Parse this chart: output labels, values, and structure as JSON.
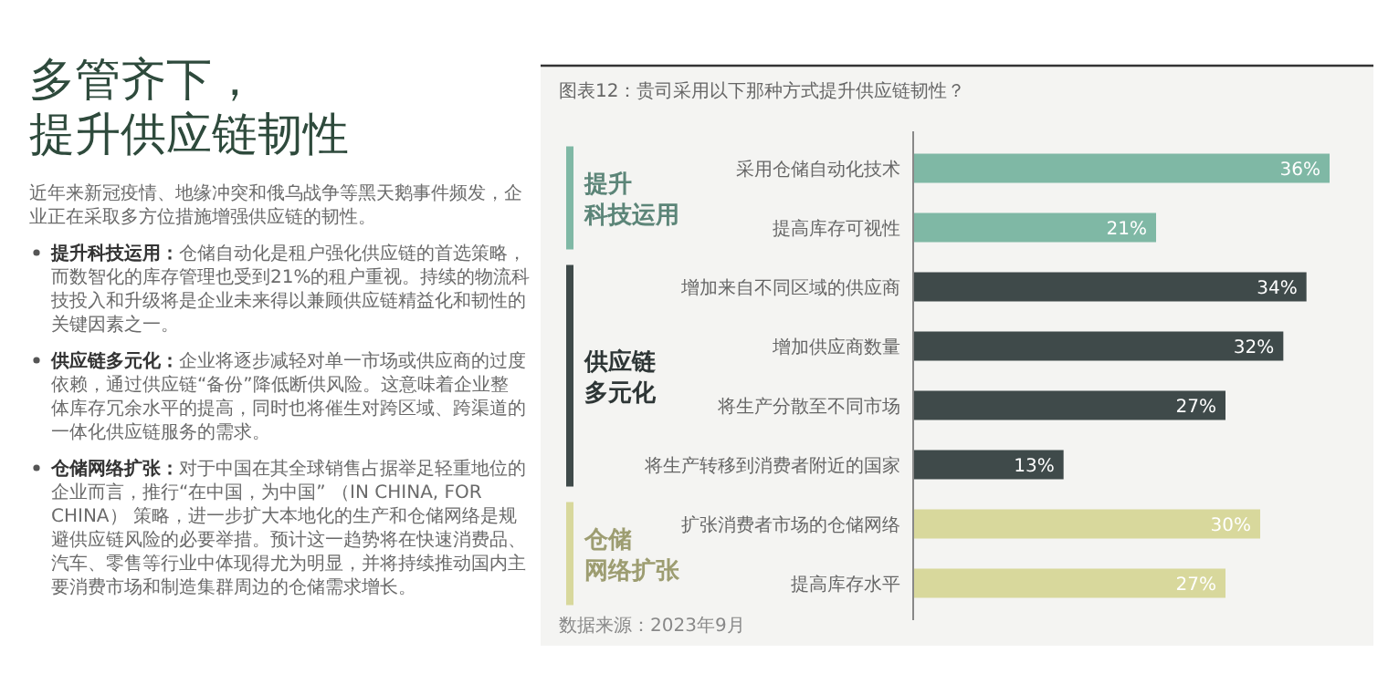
{
  "chart_data": [
    {
      "type": "other",
      "title": "多管齐下，提升供应链韧性",
      "annotations": [
        "近年来新冠疫情、地缘冲突和俄乌战争等黑天鹅事件频发，企业正在采取多方位措施增强供应链的韧性。",
        "提升科技运用：仓储自动化是租户强化供应链的首选策略，而数智化的库存管理也受到21%的租户重视。持续的物流科技投入和升级将是企业未来得以兼顾供应链精益化和韧性的关键因素之一。",
        "供应链多元化：企业将逐步减轻对单一市场或供应商的过度依赖，通过供应链“备份”降低断供风险。这意味着企业整体库存冗余水平的提高，同时也将催生对跨区域、跨渠道的一体化供应链服务的需求。",
        "仓储网络扩张：对于中国在其全球销售占据举足轻重地位的企业而言，推行“在中国，为中国” （IN CHINA, FOR CHINA） 策略，进一步扩大本地化的生产和仓储网络是规避供应链风险的必要举措。预计这一趋势将在快速消费品、汽车、零售等行业中体现得尤为明显，并将持续推动国内主要消费市场和制造集群周边的仓储需求增长。"
      ]
    },
    {
      "type": "bar",
      "orientation": "horizontal",
      "title": "图表12：贵司采用以下那种方式提升供应链韧性？",
      "categories": [
        "采用仓储自动化技术",
        "提高库存可视性",
        "增加来自不同区域的供应商",
        "增加供应商数量",
        "将生产分散至不同市场",
        "将生产转移到消费者附近的国家",
        "扩张消费者市场的仓储网络",
        "提高库存水平"
      ],
      "values": [
        36,
        21,
        34,
        32,
        27,
        13,
        30,
        27
      ],
      "value_labels": [
        "36%",
        "21%",
        "34%",
        "32%",
        "27%",
        "13%",
        "30%",
        "27%"
      ],
      "colors": [
        "#7fb8a5",
        "#7fb8a5",
        "#3f4a4a",
        "#3f4a4a",
        "#3f4a4a",
        "#3f4a4a",
        "#d8d89c",
        "#d8d89c"
      ],
      "annotations": [
        "提升",
        "科技运用",
        "供应链",
        "多元化",
        "仓储",
        "网络扩张",
        "数据来源：2023年9月"
      ]
    }
  ]
}
